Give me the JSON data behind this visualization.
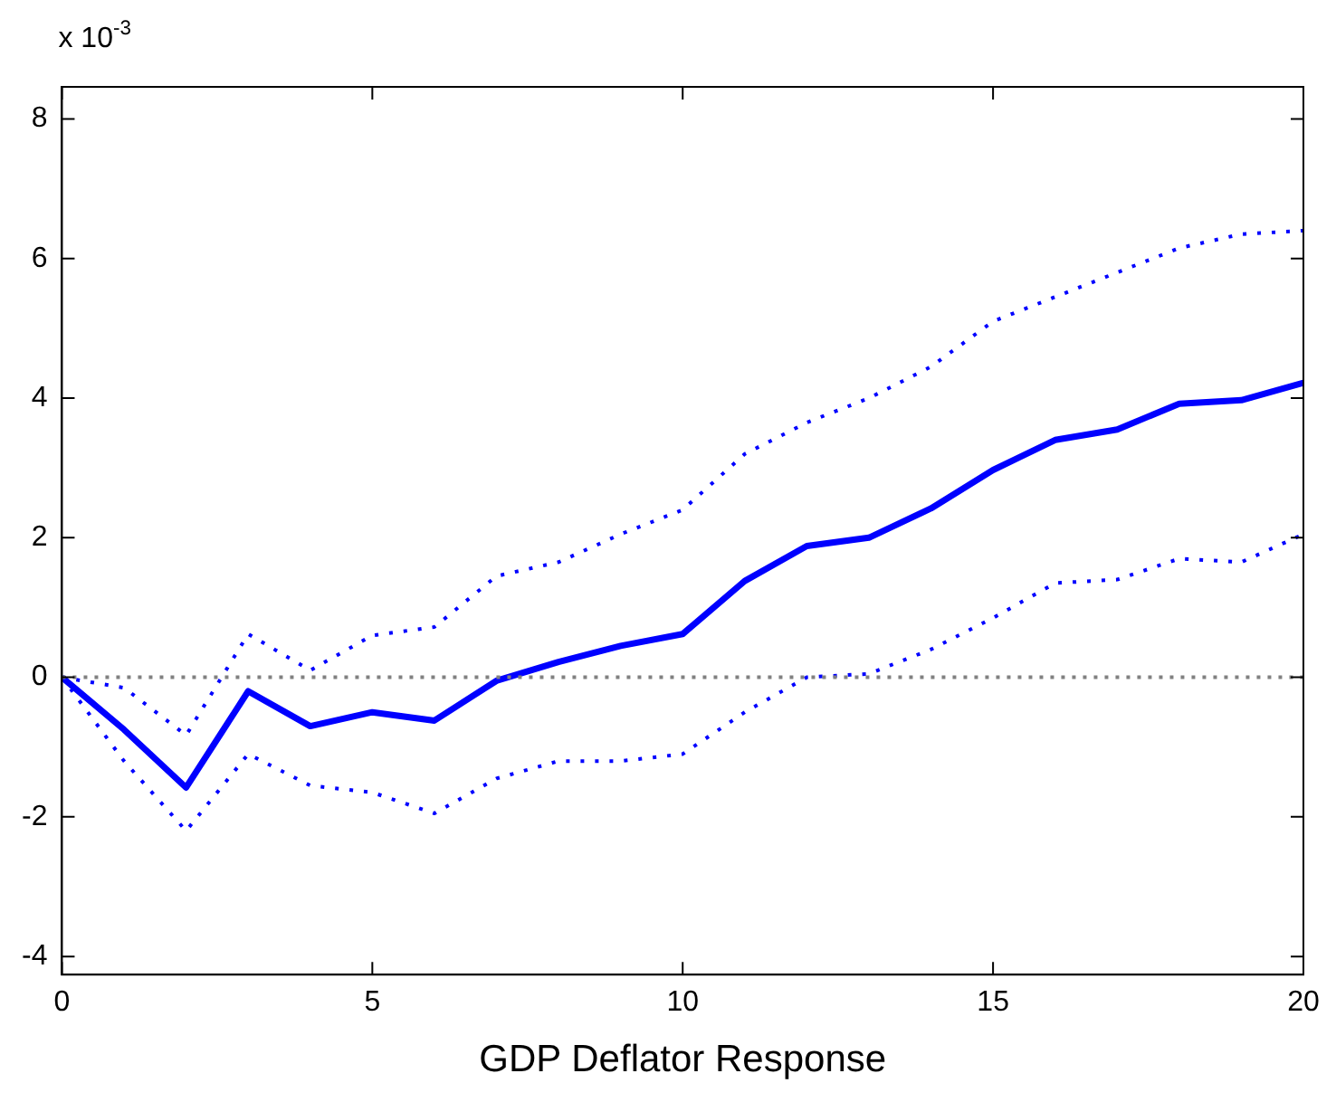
{
  "chart_data": {
    "type": "line",
    "xlabel": "GDP Deflator Response",
    "annotations": [
      "x 10$^{-3}$"
    ],
    "x": [
      0,
      1,
      2,
      3,
      4,
      5,
      6,
      7,
      8,
      9,
      10,
      11,
      12,
      13,
      14,
      15,
      16,
      17,
      18,
      19,
      20
    ],
    "series": [
      {
        "color": "#0000ff",
        "line_style": "solid",
        "values": [
          0,
          -0.75,
          -1.58,
          -0.2,
          -0.7,
          -0.5,
          -0.62,
          -0.05,
          0.22,
          0.45,
          0.62,
          1.38,
          1.88,
          2.0,
          2.42,
          2.97,
          3.4,
          3.55,
          3.92,
          3.97,
          4.22
        ]
      },
      {
        "color": "#0000ff",
        "line_style": "dotted",
        "values": [
          0,
          -0.15,
          -0.83,
          0.62,
          0.1,
          0.6,
          0.72,
          1.45,
          1.65,
          2.05,
          2.4,
          3.2,
          3.65,
          4.0,
          4.45,
          5.1,
          5.45,
          5.8,
          6.15,
          6.35,
          6.4
        ]
      },
      {
        "color": "#0000ff",
        "line_style": "dotted",
        "values": [
          0,
          -1.2,
          -2.2,
          -1.1,
          -1.55,
          -1.65,
          -1.95,
          -1.45,
          -1.2,
          -1.2,
          -1.1,
          -0.5,
          0.0,
          0.05,
          0.4,
          0.85,
          1.35,
          1.4,
          1.7,
          1.65,
          2.05
        ]
      }
    ],
    "xlim": [
      0,
      20
    ],
    "xticks": [
      0,
      5,
      10,
      15,
      20
    ],
    "ylim": [
      -4.26,
      8.46
    ],
    "yticks": [
      -4,
      -2,
      0,
      2,
      4,
      6,
      8
    ],
    "ref_lines": [
      {
        "axis": "y",
        "value": 0,
        "color": "#808080",
        "line_style": "dotted"
      }
    ],
    "grid": false,
    "legend": false,
    "marker": "none"
  }
}
